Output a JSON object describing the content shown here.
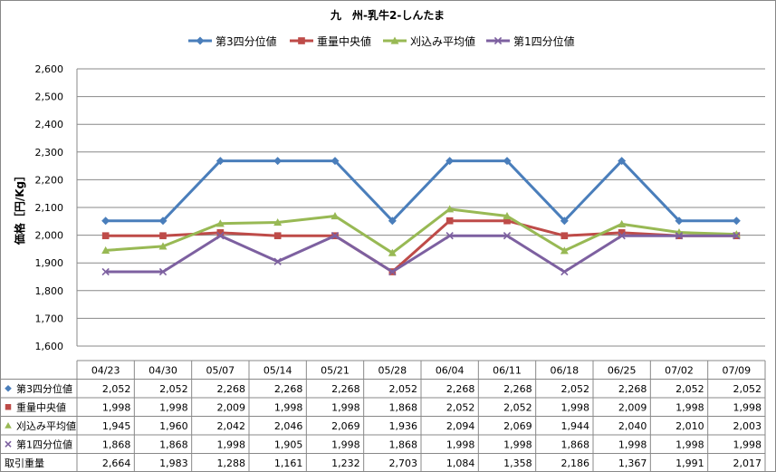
{
  "chart_data": {
    "type": "line",
    "title": "九　州-乳牛2-しんたま",
    "ylabel": "価格［円/Kg］",
    "ylim": [
      1600,
      2600
    ],
    "ytick_step": 100,
    "ytick_labels": [
      "1,600",
      "1,700",
      "1,800",
      "1,900",
      "2,000",
      "2,100",
      "2,200",
      "2,300",
      "2,400",
      "2,500",
      "2,600"
    ],
    "grid": true,
    "legend_position": "top",
    "categories": [
      "04/23",
      "04/30",
      "05/07",
      "05/14",
      "05/21",
      "05/28",
      "06/04",
      "06/11",
      "06/18",
      "06/25",
      "07/02",
      "07/09"
    ],
    "series": [
      {
        "name": "第3四分位値",
        "color": "#4A7EBB",
        "marker": "diamond",
        "values": [
          2052,
          2052,
          2268,
          2268,
          2268,
          2052,
          2268,
          2268,
          2052,
          2268,
          2052,
          2052
        ],
        "labels": [
          "2,052",
          "2,052",
          "2,268",
          "2,268",
          "2,268",
          "2,052",
          "2,268",
          "2,268",
          "2,052",
          "2,268",
          "2,052",
          "2,052"
        ]
      },
      {
        "name": "重量中央値",
        "color": "#BE4B48",
        "marker": "square",
        "values": [
          1998,
          1998,
          2009,
          1998,
          1998,
          1868,
          2052,
          2052,
          1998,
          2009,
          1998,
          1998
        ],
        "labels": [
          "1,998",
          "1,998",
          "2,009",
          "1,998",
          "1,998",
          "1,868",
          "2,052",
          "2,052",
          "1,998",
          "2,009",
          "1,998",
          "1,998"
        ]
      },
      {
        "name": "刈込み平均値",
        "color": "#98B954",
        "marker": "triangle",
        "values": [
          1945,
          1960,
          2042,
          2046,
          2069,
          1936,
          2094,
          2069,
          1944,
          2040,
          2010,
          2003
        ],
        "labels": [
          "1,945",
          "1,960",
          "2,042",
          "2,046",
          "2,069",
          "1,936",
          "2,094",
          "2,069",
          "1,944",
          "2,040",
          "2,010",
          "2,003"
        ]
      },
      {
        "name": "第1四分位値",
        "color": "#7D60A0",
        "marker": "x",
        "values": [
          1868,
          1868,
          1998,
          1905,
          1998,
          1868,
          1998,
          1998,
          1868,
          1998,
          1998,
          1998
        ],
        "labels": [
          "1,868",
          "1,868",
          "1,998",
          "1,905",
          "1,998",
          "1,868",
          "1,998",
          "1,998",
          "1,868",
          "1,998",
          "1,998",
          "1,998"
        ]
      }
    ],
    "extra_rows": [
      {
        "name": "取引重量",
        "labels": [
          "2,664",
          "1,983",
          "1,288",
          "1,161",
          "1,232",
          "2,703",
          "1,084",
          "1,358",
          "2,186",
          "1,367",
          "1,991",
          "2,017"
        ]
      }
    ]
  }
}
